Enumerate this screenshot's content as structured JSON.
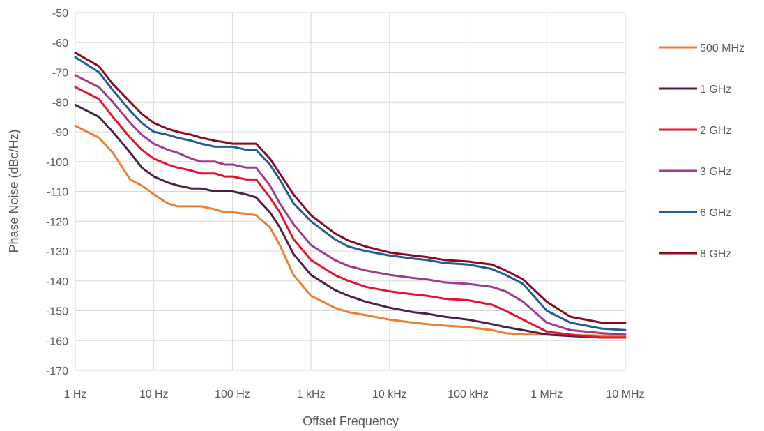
{
  "chart_data": {
    "type": "line",
    "title": "",
    "xlabel": "Offset Frequency",
    "ylabel": "Phase Noise (dBc/Hz)",
    "x_scale": "log",
    "xlim": [
      1,
      10000000
    ],
    "ylim": [
      -170,
      -50
    ],
    "x_ticks": [
      1,
      10,
      100,
      1000,
      10000,
      100000,
      1000000,
      10000000
    ],
    "x_tick_labels": [
      "1 Hz",
      "10 Hz",
      "100 Hz",
      "1 kHz",
      "10 kHz",
      "100 kHz",
      "1 MHz",
      "10 MHz"
    ],
    "y_ticks": [
      -50,
      -60,
      -70,
      -80,
      -90,
      -100,
      -110,
      -120,
      -130,
      -140,
      -150,
      -160,
      -170
    ],
    "y_tick_labels": [
      "-50",
      "-60",
      "-70",
      "-80",
      "-90",
      "-100",
      "-110",
      "-120",
      "-130",
      "-140",
      "-150",
      "-160",
      "-170"
    ],
    "grid": true,
    "legend_position": "right",
    "series": [
      {
        "name": "500 MHz",
        "color": "#ED7D31",
        "x": [
          1,
          2,
          3,
          5,
          7,
          10,
          15,
          20,
          30,
          40,
          60,
          80,
          100,
          150,
          200,
          300,
          400,
          600,
          1000,
          2000,
          3000,
          5000,
          10000,
          20000,
          30000,
          50000,
          100000,
          200000,
          300000,
          500000,
          1000000,
          2000000,
          5000000,
          10000000
        ],
        "y": [
          -88,
          -92,
          -97,
          -106,
          -108,
          -111,
          -114,
          -115,
          -115,
          -115,
          -116,
          -117,
          -117,
          -117.5,
          -118,
          -122,
          -128,
          -138,
          -145,
          -149,
          -150.5,
          -151.5,
          -153,
          -154,
          -154.5,
          -155,
          -155.5,
          -156.5,
          -157.5,
          -158,
          -158,
          -158.2,
          -158.3,
          -158.5
        ]
      },
      {
        "name": "1 GHz",
        "color": "#4A2045",
        "x": [
          1,
          2,
          3,
          5,
          7,
          10,
          15,
          20,
          30,
          40,
          60,
          80,
          100,
          150,
          200,
          300,
          400,
          600,
          1000,
          2000,
          3000,
          5000,
          10000,
          20000,
          30000,
          50000,
          100000,
          200000,
          300000,
          500000,
          1000000,
          2000000,
          5000000,
          10000000
        ],
        "y": [
          -81,
          -85,
          -90,
          -97,
          -102,
          -105,
          -107,
          -108,
          -109,
          -109,
          -110,
          -110,
          -110,
          -111,
          -112,
          -117,
          -122,
          -131,
          -138,
          -143,
          -145,
          -147,
          -149,
          -150.5,
          -151,
          -152,
          -153,
          -154.5,
          -155.5,
          -156.5,
          -158,
          -158.5,
          -159,
          -159
        ]
      },
      {
        "name": "2 GHz",
        "color": "#E8112D",
        "x": [
          1,
          2,
          3,
          5,
          7,
          10,
          15,
          20,
          30,
          40,
          60,
          80,
          100,
          150,
          200,
          300,
          400,
          600,
          1000,
          2000,
          3000,
          5000,
          10000,
          20000,
          30000,
          50000,
          100000,
          200000,
          300000,
          500000,
          1000000,
          2000000,
          5000000,
          10000000
        ],
        "y": [
          -75,
          -79,
          -85,
          -92,
          -96,
          -99,
          -101,
          -102,
          -103,
          -104,
          -104,
          -105,
          -105,
          -106,
          -106,
          -112,
          -117,
          -126,
          -133,
          -138,
          -140,
          -142,
          -143.5,
          -144.5,
          -145,
          -146,
          -146.5,
          -148,
          -150,
          -153,
          -157,
          -158,
          -159,
          -159
        ]
      },
      {
        "name": "3 GHz",
        "color": "#9E3A8C",
        "x": [
          1,
          2,
          3,
          5,
          7,
          10,
          15,
          20,
          30,
          40,
          60,
          80,
          100,
          150,
          200,
          300,
          400,
          600,
          1000,
          2000,
          3000,
          5000,
          10000,
          20000,
          30000,
          50000,
          100000,
          200000,
          300000,
          500000,
          1000000,
          2000000,
          5000000,
          10000000
        ],
        "y": [
          -71,
          -75,
          -80,
          -87,
          -91,
          -94,
          -96,
          -97,
          -99,
          -100,
          -100,
          -101,
          -101,
          -102,
          -102,
          -108,
          -114,
          -121,
          -128,
          -133,
          -135,
          -136.5,
          -138,
          -139,
          -139.5,
          -140.5,
          -141,
          -142,
          -143.5,
          -147,
          -154,
          -156.5,
          -157.5,
          -158
        ]
      },
      {
        "name": "6 GHz",
        "color": "#1F5C99",
        "x": [
          1,
          2,
          3,
          5,
          7,
          10,
          15,
          20,
          30,
          40,
          60,
          80,
          100,
          150,
          200,
          300,
          400,
          600,
          1000,
          2000,
          3000,
          5000,
          10000,
          20000,
          30000,
          50000,
          100000,
          200000,
          300000,
          500000,
          1000000,
          2000000,
          5000000,
          10000000
        ],
        "y": [
          -65,
          -70,
          -76,
          -83,
          -87,
          -90,
          -91,
          -92,
          -93,
          -94,
          -95,
          -95,
          -95,
          -96,
          -96,
          -101,
          -106,
          -114,
          -120,
          -126,
          -128.5,
          -130,
          -131.5,
          -132.5,
          -133,
          -134,
          -134.5,
          -136,
          -138,
          -141,
          -150,
          -154,
          -156,
          -156.5
        ]
      },
      {
        "name": "8 GHz",
        "color": "#8B0A1F",
        "x": [
          1,
          2,
          3,
          5,
          7,
          10,
          15,
          20,
          30,
          40,
          60,
          80,
          100,
          150,
          200,
          300,
          400,
          600,
          1000,
          2000,
          3000,
          5000,
          10000,
          20000,
          30000,
          50000,
          100000,
          200000,
          300000,
          500000,
          1000000,
          2000000,
          5000000,
          10000000
        ],
        "y": [
          -63.5,
          -68,
          -74,
          -80,
          -84,
          -87,
          -89,
          -90,
          -91,
          -92,
          -93,
          -93.5,
          -94,
          -94,
          -94,
          -99,
          -104,
          -111,
          -118,
          -124,
          -126.5,
          -128.5,
          -130.5,
          -131.5,
          -132,
          -133,
          -133.5,
          -134.5,
          -136.5,
          -139.5,
          -147,
          -152,
          -154,
          -154
        ]
      }
    ]
  }
}
